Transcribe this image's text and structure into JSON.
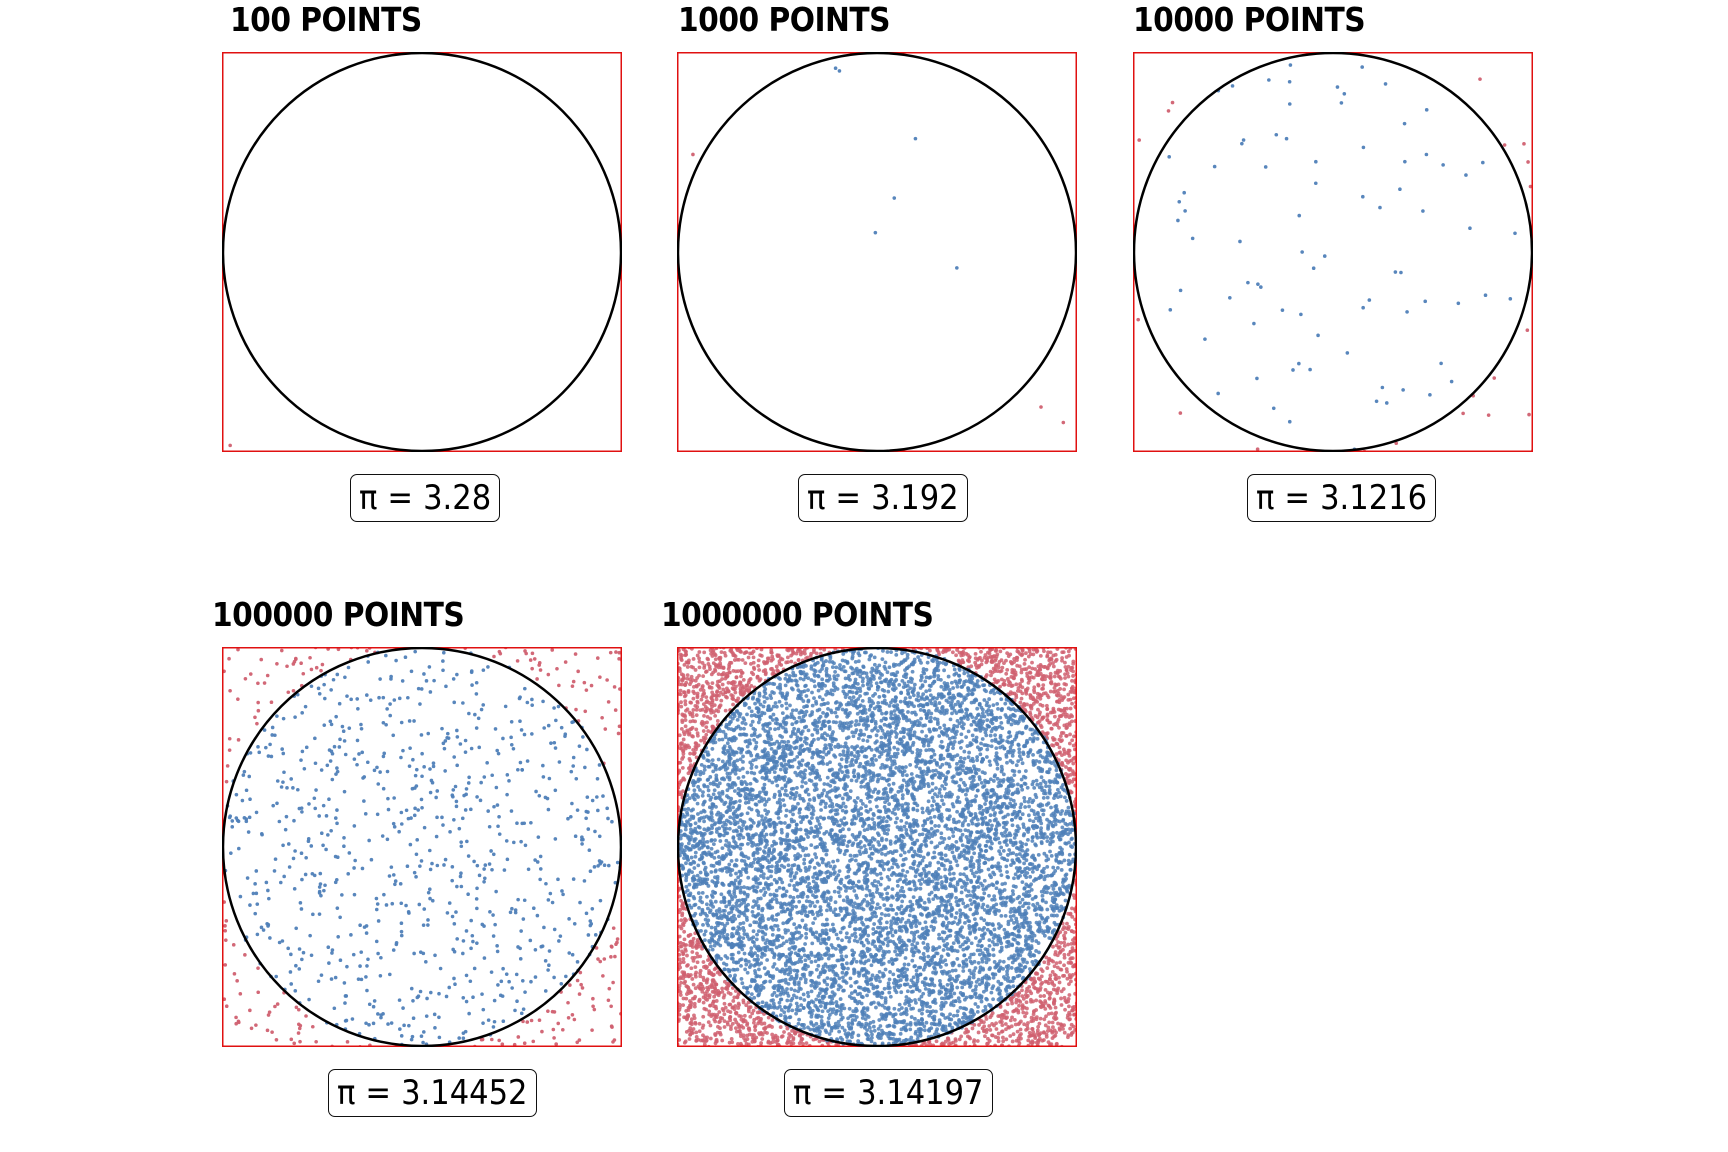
{
  "colors": {
    "inside": "#4f80b8",
    "outside": "#d06070",
    "square": "#e01010",
    "circle": "#000000"
  },
  "chart_data": [
    {
      "type": "scatter",
      "title": "100 POINTS",
      "n": 100,
      "shown_points": 1,
      "xlim": [
        -1,
        1
      ],
      "ylim": [
        -1,
        1
      ],
      "pi_label": "π",
      "eq_label": "=",
      "pi_value": "3.28"
    },
    {
      "type": "scatter",
      "title": "1000 POINTS",
      "n": 1000,
      "shown_points": 9,
      "xlim": [
        -1,
        1
      ],
      "ylim": [
        -1,
        1
      ],
      "pi_label": "π",
      "eq_label": "=",
      "pi_value": "3.192"
    },
    {
      "type": "scatter",
      "title": "10000 POINTS",
      "n": 10000,
      "shown_points": 100,
      "xlim": [
        -1,
        1
      ],
      "ylim": [
        -1,
        1
      ],
      "pi_label": "π",
      "eq_label": "=",
      "pi_value": "3.1216"
    },
    {
      "type": "scatter",
      "title": "100000 POINTS",
      "n": 100000,
      "shown_points": 1000,
      "xlim": [
        -1,
        1
      ],
      "ylim": [
        -1,
        1
      ],
      "pi_label": "π",
      "eq_label": "=",
      "pi_value": "3.14452"
    },
    {
      "type": "scatter",
      "title": "1000000 POINTS",
      "n": 1000000,
      "shown_points": 10000,
      "xlim": [
        -1,
        1
      ],
      "ylim": [
        -1,
        1
      ],
      "pi_label": "π",
      "eq_label": "=",
      "pi_value": "3.14197"
    }
  ]
}
